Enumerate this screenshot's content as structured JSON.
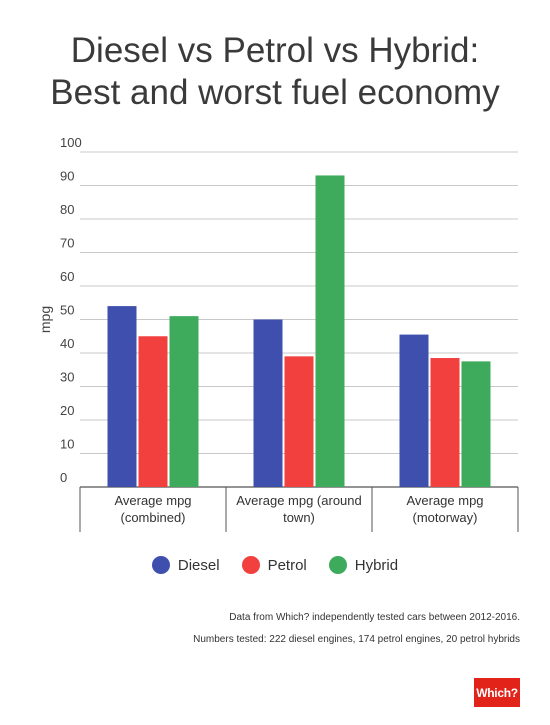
{
  "title_line1": "Diesel vs Petrol vs Hybrid:",
  "title_line2": "Best and worst fuel economy",
  "chart_data": {
    "type": "bar",
    "title": "Diesel vs Petrol vs Hybrid: Best and worst fuel economy",
    "xlabel": "",
    "ylabel": "mpg",
    "ylim": [
      0,
      100
    ],
    "yticks": [
      0,
      10,
      20,
      30,
      40,
      50,
      60,
      70,
      80,
      90,
      100
    ],
    "grid": true,
    "legend_position": "bottom",
    "categories": [
      [
        "Average mpg",
        "(combined)"
      ],
      [
        "Average mpg (around",
        "town)"
      ],
      [
        "Average mpg",
        "(motorway)"
      ]
    ],
    "series": [
      {
        "name": "Diesel",
        "color": "#3f4fae",
        "values": [
          54,
          50,
          45.5
        ]
      },
      {
        "name": "Petrol",
        "color": "#f2403e",
        "values": [
          45,
          39,
          38.5
        ]
      },
      {
        "name": "Hybrid",
        "color": "#3daa5c",
        "values": [
          51,
          93,
          37.5
        ]
      }
    ]
  },
  "legend": [
    {
      "label": "Diesel",
      "color": "#3f4fae"
    },
    {
      "label": "Petrol",
      "color": "#f2403e"
    },
    {
      "label": "Hybrid",
      "color": "#3daa5c"
    }
  ],
  "source_line1": "Data from Which? independently tested cars between 2012-2016.",
  "source_line2": "Numbers tested: 222 diesel engines, 174 petrol engines, 20 petrol hybrids",
  "logo_text": "Which?"
}
